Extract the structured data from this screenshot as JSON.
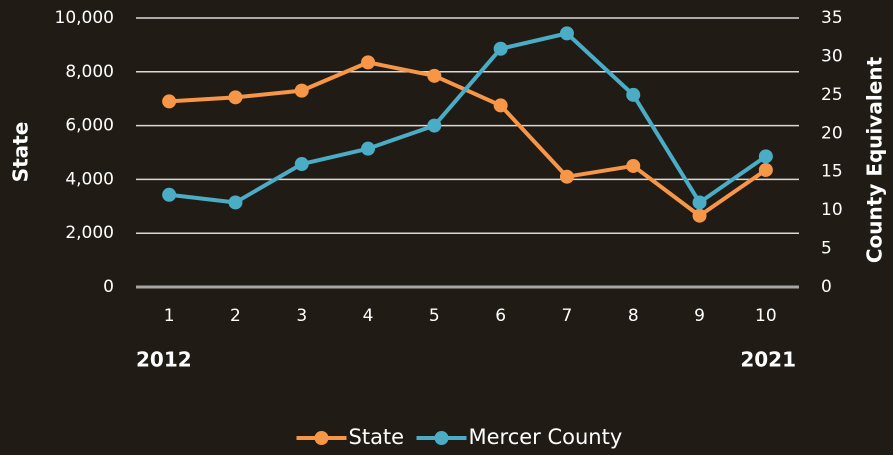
{
  "chart_data": {
    "type": "line",
    "categories": [
      "1",
      "2",
      "3",
      "4",
      "5",
      "6",
      "7",
      "8",
      "9",
      "10"
    ],
    "annotations": [
      "2012",
      "2021"
    ],
    "ylabel": "State",
    "y2label": "County Equivalent",
    "series": [
      {
        "name": "State",
        "color": "#f79646",
        "values": [
          6900,
          7050,
          7300,
          8350,
          7850,
          6750,
          4100,
          4500,
          2650,
          4350
        ]
      },
      {
        "name": "Mercer County",
        "color": "#4bacc6",
        "axis": "y2",
        "values": [
          12,
          11,
          16,
          18,
          21,
          31,
          33,
          25,
          11,
          17
        ]
      }
    ],
    "ylim": [
      0,
      10000
    ],
    "yticks": [
      0,
      {
        "value": 2000,
        "label": "2,000"
      },
      {
        "value": 4000,
        "label": "4,000"
      },
      {
        "value": 6000,
        "label": "6,000"
      },
      {
        "value": 8000,
        "label": "8,000"
      },
      {
        "value": 10000,
        "label": "10,000"
      }
    ],
    "y2lim": [
      0,
      35
    ],
    "y2ticks": [
      0,
      5,
      10,
      15,
      20,
      25,
      30,
      35
    ],
    "grid": true,
    "legend": "bottom"
  }
}
